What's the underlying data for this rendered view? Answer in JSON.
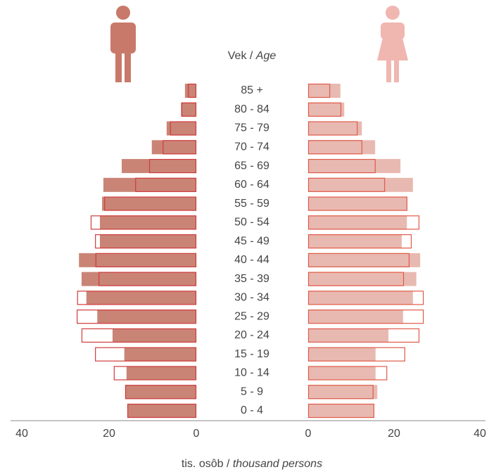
{
  "chart_data": {
    "type": "pyramid",
    "y_title": [
      "Vek /",
      "Age"
    ],
    "x_title": [
      "tis. osôb  /",
      "thousand persons"
    ],
    "categories": [
      "85 +",
      "80 - 84",
      "75 - 79",
      "70 - 74",
      "65 - 69",
      "60 - 64",
      "55 - 59",
      "50 - 54",
      "45 - 49",
      "40 - 44",
      "35 - 39",
      "30 - 34",
      "25 - 29",
      "20 - 24",
      "15 - 19",
      "10 - 14",
      "5 - 9",
      "0 - 4"
    ],
    "xlim": [
      0,
      40
    ],
    "xticks": [
      0,
      20,
      40
    ],
    "series": [
      {
        "side": "left",
        "style": "filled",
        "color": "#c98476",
        "values": [
          2.6,
          3.5,
          6.8,
          10.2,
          17.1,
          21.3,
          21.6,
          22.1,
          22.1,
          26.9,
          26.3,
          25.2,
          22.7,
          19.2,
          16.5,
          16.0,
          16.3,
          15.8
        ]
      },
      {
        "side": "left",
        "style": "outline",
        "color": "#d03c3c",
        "values": [
          1.9,
          3.4,
          6.0,
          7.7,
          10.8,
          14.0,
          21.1,
          24.2,
          23.2,
          23.1,
          22.4,
          27.3,
          27.4,
          26.3,
          23.2,
          18.9,
          16.3,
          15.8
        ]
      },
      {
        "side": "right",
        "style": "filled",
        "color": "#e8b9b1",
        "values": [
          7.5,
          8.4,
          12.5,
          15.6,
          21.5,
          24.4,
          23.1,
          23.0,
          21.8,
          26.1,
          25.2,
          24.4,
          22.1,
          18.7,
          15.7,
          15.7,
          16.1,
          15.4
        ]
      },
      {
        "side": "right",
        "style": "outline",
        "color": "#e05a48",
        "values": [
          5.1,
          7.7,
          11.5,
          12.6,
          15.7,
          17.9,
          23.1,
          25.9,
          24.1,
          23.6,
          22.3,
          26.9,
          26.9,
          25.9,
          22.6,
          18.4,
          15.2,
          15.4
        ]
      }
    ]
  }
}
